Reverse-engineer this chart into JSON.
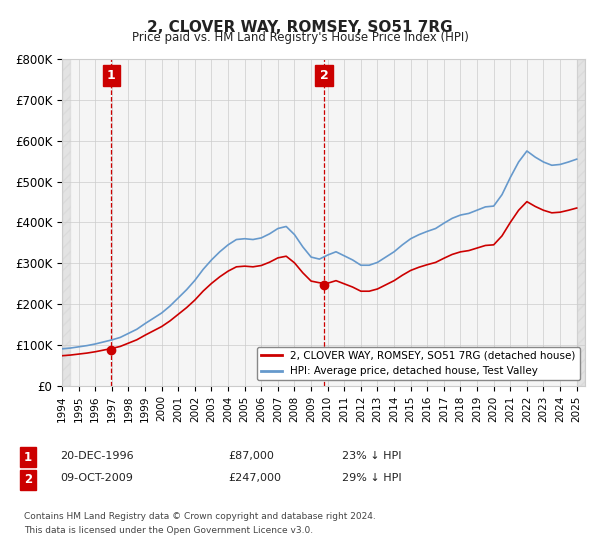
{
  "title": "2, CLOVER WAY, ROMSEY, SO51 7RG",
  "subtitle": "Price paid vs. HM Land Registry's House Price Index (HPI)",
  "ylabel": "",
  "ylim": [
    0,
    800000
  ],
  "yticks": [
    0,
    100000,
    200000,
    300000,
    400000,
    500000,
    600000,
    700000,
    800000
  ],
  "ytick_labels": [
    "£0",
    "£100K",
    "£200K",
    "£300K",
    "£400K",
    "£500K",
    "£600K",
    "£700K",
    "£800K"
  ],
  "sale_color": "#cc0000",
  "hpi_color": "#6699cc",
  "vline_color": "#cc0000",
  "annotation_box_color": "#cc0000",
  "grid_color": "#cccccc",
  "bg_color": "#ffffff",
  "plot_bg_color": "#f5f5f5",
  "sale1_date": 1996.97,
  "sale1_price": 87000,
  "sale1_label": "1",
  "sale2_date": 2009.77,
  "sale2_price": 247000,
  "sale2_label": "2",
  "legend_sale": "2, CLOVER WAY, ROMSEY, SO51 7RG (detached house)",
  "legend_hpi": "HPI: Average price, detached house, Test Valley",
  "footnote1": "1  20-DEC-1996          £87,000        23% ↓ HPI",
  "footnote2": "2  09-OCT-2009          £247,000      29% ↓ HPI",
  "footnote3": "Contains HM Land Registry data © Crown copyright and database right 2024.",
  "footnote4": "This data is licensed under the Open Government Licence v3.0.",
  "xmin": 1994,
  "xmax": 2025.5
}
